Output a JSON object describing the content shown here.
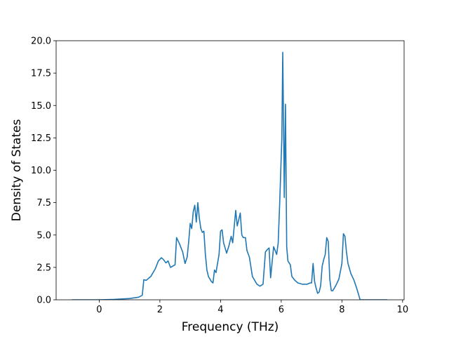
{
  "chart_data": {
    "type": "line",
    "xlabel": "Frequency (THz)",
    "ylabel": "Density of States",
    "xlim": [
      -1.42,
      10.05
    ],
    "ylim": [
      0,
      20
    ],
    "xticks": [
      0,
      2,
      4,
      6,
      8,
      10
    ],
    "xtick_labels": [
      "0",
      "2",
      "4",
      "6",
      "8",
      "10"
    ],
    "yticks": [
      0,
      2.5,
      5,
      7.5,
      10,
      12.5,
      15,
      17.5,
      20
    ],
    "ytick_labels": [
      "0.0",
      "2.5",
      "5.0",
      "7.5",
      "10.0",
      "12.5",
      "15.0",
      "17.5",
      "20.0"
    ],
    "grid": false,
    "legend": "none",
    "series": [
      {
        "color": "#1f77b4",
        "points": [
          [
            -0.9,
            0.0
          ],
          [
            0.0,
            0.0
          ],
          [
            0.5,
            0.03
          ],
          [
            1.0,
            0.1
          ],
          [
            1.3,
            0.2
          ],
          [
            1.42,
            0.35
          ],
          [
            1.47,
            1.55
          ],
          [
            1.55,
            1.5
          ],
          [
            1.7,
            1.8
          ],
          [
            1.85,
            2.4
          ],
          [
            1.95,
            3.0
          ],
          [
            2.05,
            3.25
          ],
          [
            2.12,
            3.1
          ],
          [
            2.2,
            2.85
          ],
          [
            2.27,
            3.0
          ],
          [
            2.35,
            2.5
          ],
          [
            2.5,
            2.7
          ],
          [
            2.55,
            4.8
          ],
          [
            2.65,
            4.3
          ],
          [
            2.75,
            3.7
          ],
          [
            2.83,
            2.8
          ],
          [
            2.9,
            3.3
          ],
          [
            2.95,
            4.5
          ],
          [
            3.0,
            5.9
          ],
          [
            3.05,
            5.5
          ],
          [
            3.1,
            6.8
          ],
          [
            3.15,
            7.3
          ],
          [
            3.2,
            6.0
          ],
          [
            3.25,
            7.5
          ],
          [
            3.3,
            6.3
          ],
          [
            3.35,
            5.5
          ],
          [
            3.4,
            5.2
          ],
          [
            3.45,
            5.3
          ],
          [
            3.5,
            3.5
          ],
          [
            3.55,
            2.3
          ],
          [
            3.6,
            1.8
          ],
          [
            3.7,
            1.4
          ],
          [
            3.75,
            1.3
          ],
          [
            3.8,
            2.3
          ],
          [
            3.85,
            2.1
          ],
          [
            3.95,
            3.5
          ],
          [
            4.0,
            5.3
          ],
          [
            4.05,
            5.4
          ],
          [
            4.1,
            4.4
          ],
          [
            4.2,
            3.6
          ],
          [
            4.28,
            4.2
          ],
          [
            4.35,
            4.9
          ],
          [
            4.4,
            4.4
          ],
          [
            4.5,
            6.9
          ],
          [
            4.55,
            5.7
          ],
          [
            4.65,
            6.7
          ],
          [
            4.7,
            5.0
          ],
          [
            4.75,
            4.8
          ],
          [
            4.82,
            4.8
          ],
          [
            4.87,
            3.8
          ],
          [
            4.95,
            3.3
          ],
          [
            5.05,
            1.8
          ],
          [
            5.2,
            1.2
          ],
          [
            5.3,
            1.05
          ],
          [
            5.4,
            1.2
          ],
          [
            5.48,
            3.7
          ],
          [
            5.55,
            3.9
          ],
          [
            5.6,
            4.0
          ],
          [
            5.65,
            1.7
          ],
          [
            5.75,
            4.1
          ],
          [
            5.85,
            3.5
          ],
          [
            5.9,
            4.4
          ],
          [
            5.95,
            7.5
          ],
          [
            6.02,
            12.5
          ],
          [
            6.05,
            19.1
          ],
          [
            6.08,
            13.0
          ],
          [
            6.1,
            7.9
          ],
          [
            6.14,
            15.1
          ],
          [
            6.18,
            4.1
          ],
          [
            6.22,
            3.0
          ],
          [
            6.3,
            2.7
          ],
          [
            6.35,
            1.8
          ],
          [
            6.45,
            1.5
          ],
          [
            6.55,
            1.3
          ],
          [
            6.7,
            1.2
          ],
          [
            6.85,
            1.2
          ],
          [
            6.95,
            1.3
          ],
          [
            7.0,
            1.3
          ],
          [
            7.05,
            2.8
          ],
          [
            7.1,
            1.4
          ],
          [
            7.15,
            0.9
          ],
          [
            7.2,
            0.5
          ],
          [
            7.25,
            0.6
          ],
          [
            7.3,
            1.1
          ],
          [
            7.35,
            2.6
          ],
          [
            7.4,
            3.1
          ],
          [
            7.45,
            3.5
          ],
          [
            7.5,
            4.8
          ],
          [
            7.55,
            4.5
          ],
          [
            7.6,
            1.6
          ],
          [
            7.65,
            0.7
          ],
          [
            7.7,
            0.7
          ],
          [
            7.8,
            1.1
          ],
          [
            7.9,
            1.6
          ],
          [
            8.0,
            2.8
          ],
          [
            8.05,
            5.1
          ],
          [
            8.1,
            4.9
          ],
          [
            8.15,
            3.7
          ],
          [
            8.2,
            2.8
          ],
          [
            8.3,
            2.0
          ],
          [
            8.4,
            1.5
          ],
          [
            8.5,
            0.8
          ],
          [
            8.6,
            0.0
          ],
          [
            9.0,
            0.0
          ],
          [
            9.5,
            0.0
          ]
        ]
      }
    ]
  }
}
